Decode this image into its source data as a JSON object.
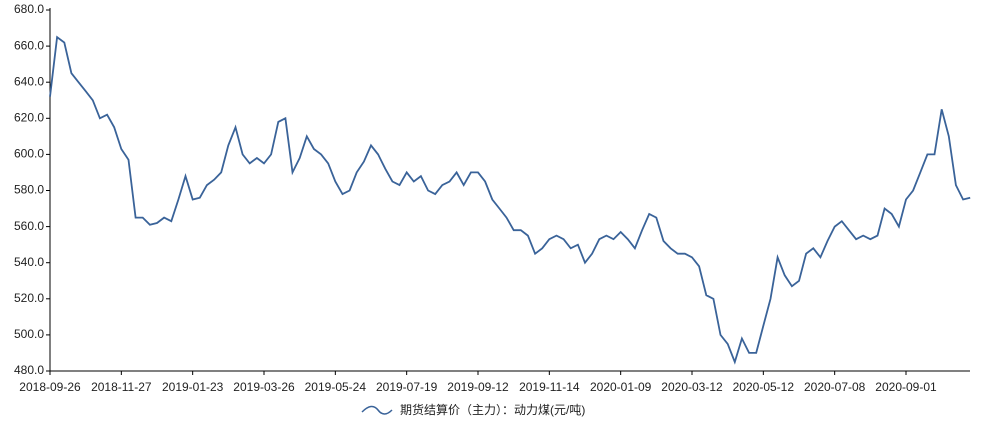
{
  "chart_data": {
    "type": "line",
    "categories": [
      "2018-09-26",
      null,
      null,
      null,
      null,
      null,
      null,
      null,
      null,
      null,
      "2018-11-27",
      null,
      null,
      null,
      null,
      null,
      null,
      null,
      null,
      null,
      "2019-01-23",
      null,
      null,
      null,
      null,
      null,
      null,
      null,
      null,
      null,
      "2019-03-26",
      null,
      null,
      null,
      null,
      null,
      null,
      null,
      null,
      null,
      "2019-05-24",
      null,
      null,
      null,
      null,
      null,
      null,
      null,
      null,
      null,
      "2019-07-19",
      null,
      null,
      null,
      null,
      null,
      null,
      null,
      null,
      null,
      "2019-09-12",
      null,
      null,
      null,
      null,
      null,
      null,
      null,
      null,
      null,
      "2019-11-14",
      null,
      null,
      null,
      null,
      null,
      null,
      null,
      null,
      null,
      "2020-01-09",
      null,
      null,
      null,
      null,
      null,
      null,
      null,
      null,
      null,
      "2020-03-12",
      null,
      null,
      null,
      null,
      null,
      null,
      null,
      null,
      null,
      "2020-05-12",
      null,
      null,
      null,
      null,
      null,
      null,
      null,
      null,
      null,
      "2020-07-08",
      null,
      null,
      null,
      null,
      null,
      null,
      null,
      null,
      null,
      "2020-09-01",
      null,
      null,
      null,
      null,
      null,
      null,
      null,
      null,
      null
    ],
    "series": [
      {
        "name": "期货结算价（主力）：动力煤(元/吨)",
        "color": "#3a6399",
        "values": [
          632,
          665,
          662,
          645,
          640,
          635,
          630,
          620,
          622,
          615,
          603,
          597,
          565,
          565,
          561,
          562,
          565,
          563,
          575,
          588,
          575,
          576,
          583,
          586,
          590,
          605,
          615,
          600,
          595,
          598,
          595,
          600,
          618,
          620,
          590,
          598,
          610,
          603,
          600,
          595,
          585,
          578,
          580,
          590,
          596,
          605,
          600,
          592,
          585,
          583,
          590,
          585,
          588,
          580,
          578,
          583,
          585,
          590,
          583,
          590,
          590,
          585,
          575,
          570,
          565,
          558,
          558,
          555,
          545,
          548,
          553,
          555,
          553,
          548,
          550,
          540,
          545,
          553,
          555,
          553,
          557,
          553,
          548,
          558,
          567,
          565,
          552,
          548,
          545,
          545,
          543,
          538,
          522,
          520,
          500,
          495,
          485,
          498,
          490,
          490,
          505,
          520,
          543,
          533,
          527,
          530,
          545,
          548,
          543,
          552,
          560,
          563,
          558,
          553,
          555,
          553,
          555,
          570,
          567,
          560,
          575,
          580,
          590,
          600,
          600,
          625,
          610,
          583,
          575,
          576
        ]
      }
    ],
    "ylim": [
      480,
      680
    ],
    "yticks": [
      {
        "value": 480,
        "label": "480.0"
      },
      {
        "value": 500,
        "label": "500.0"
      },
      {
        "value": 520,
        "label": "520.0"
      },
      {
        "value": 540,
        "label": "540.0"
      },
      {
        "value": 560,
        "label": "560.0"
      },
      {
        "value": 580,
        "label": "580.0"
      },
      {
        "value": 600,
        "label": "600.0"
      },
      {
        "value": 620,
        "label": "620.0"
      },
      {
        "value": 640,
        "label": "640.0"
      },
      {
        "value": 660,
        "label": "660.0"
      },
      {
        "value": 680,
        "label": "680.0"
      }
    ]
  }
}
